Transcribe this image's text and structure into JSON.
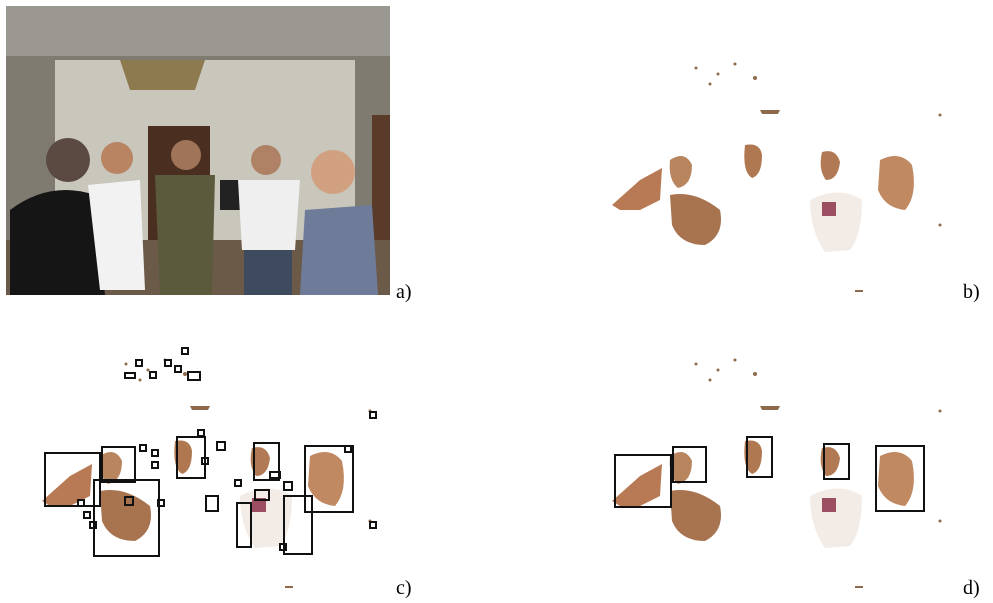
{
  "figure": {
    "panels": [
      {
        "label": "a)"
      },
      {
        "label": "b)"
      },
      {
        "label": "c)"
      },
      {
        "label": "d)"
      }
    ]
  }
}
